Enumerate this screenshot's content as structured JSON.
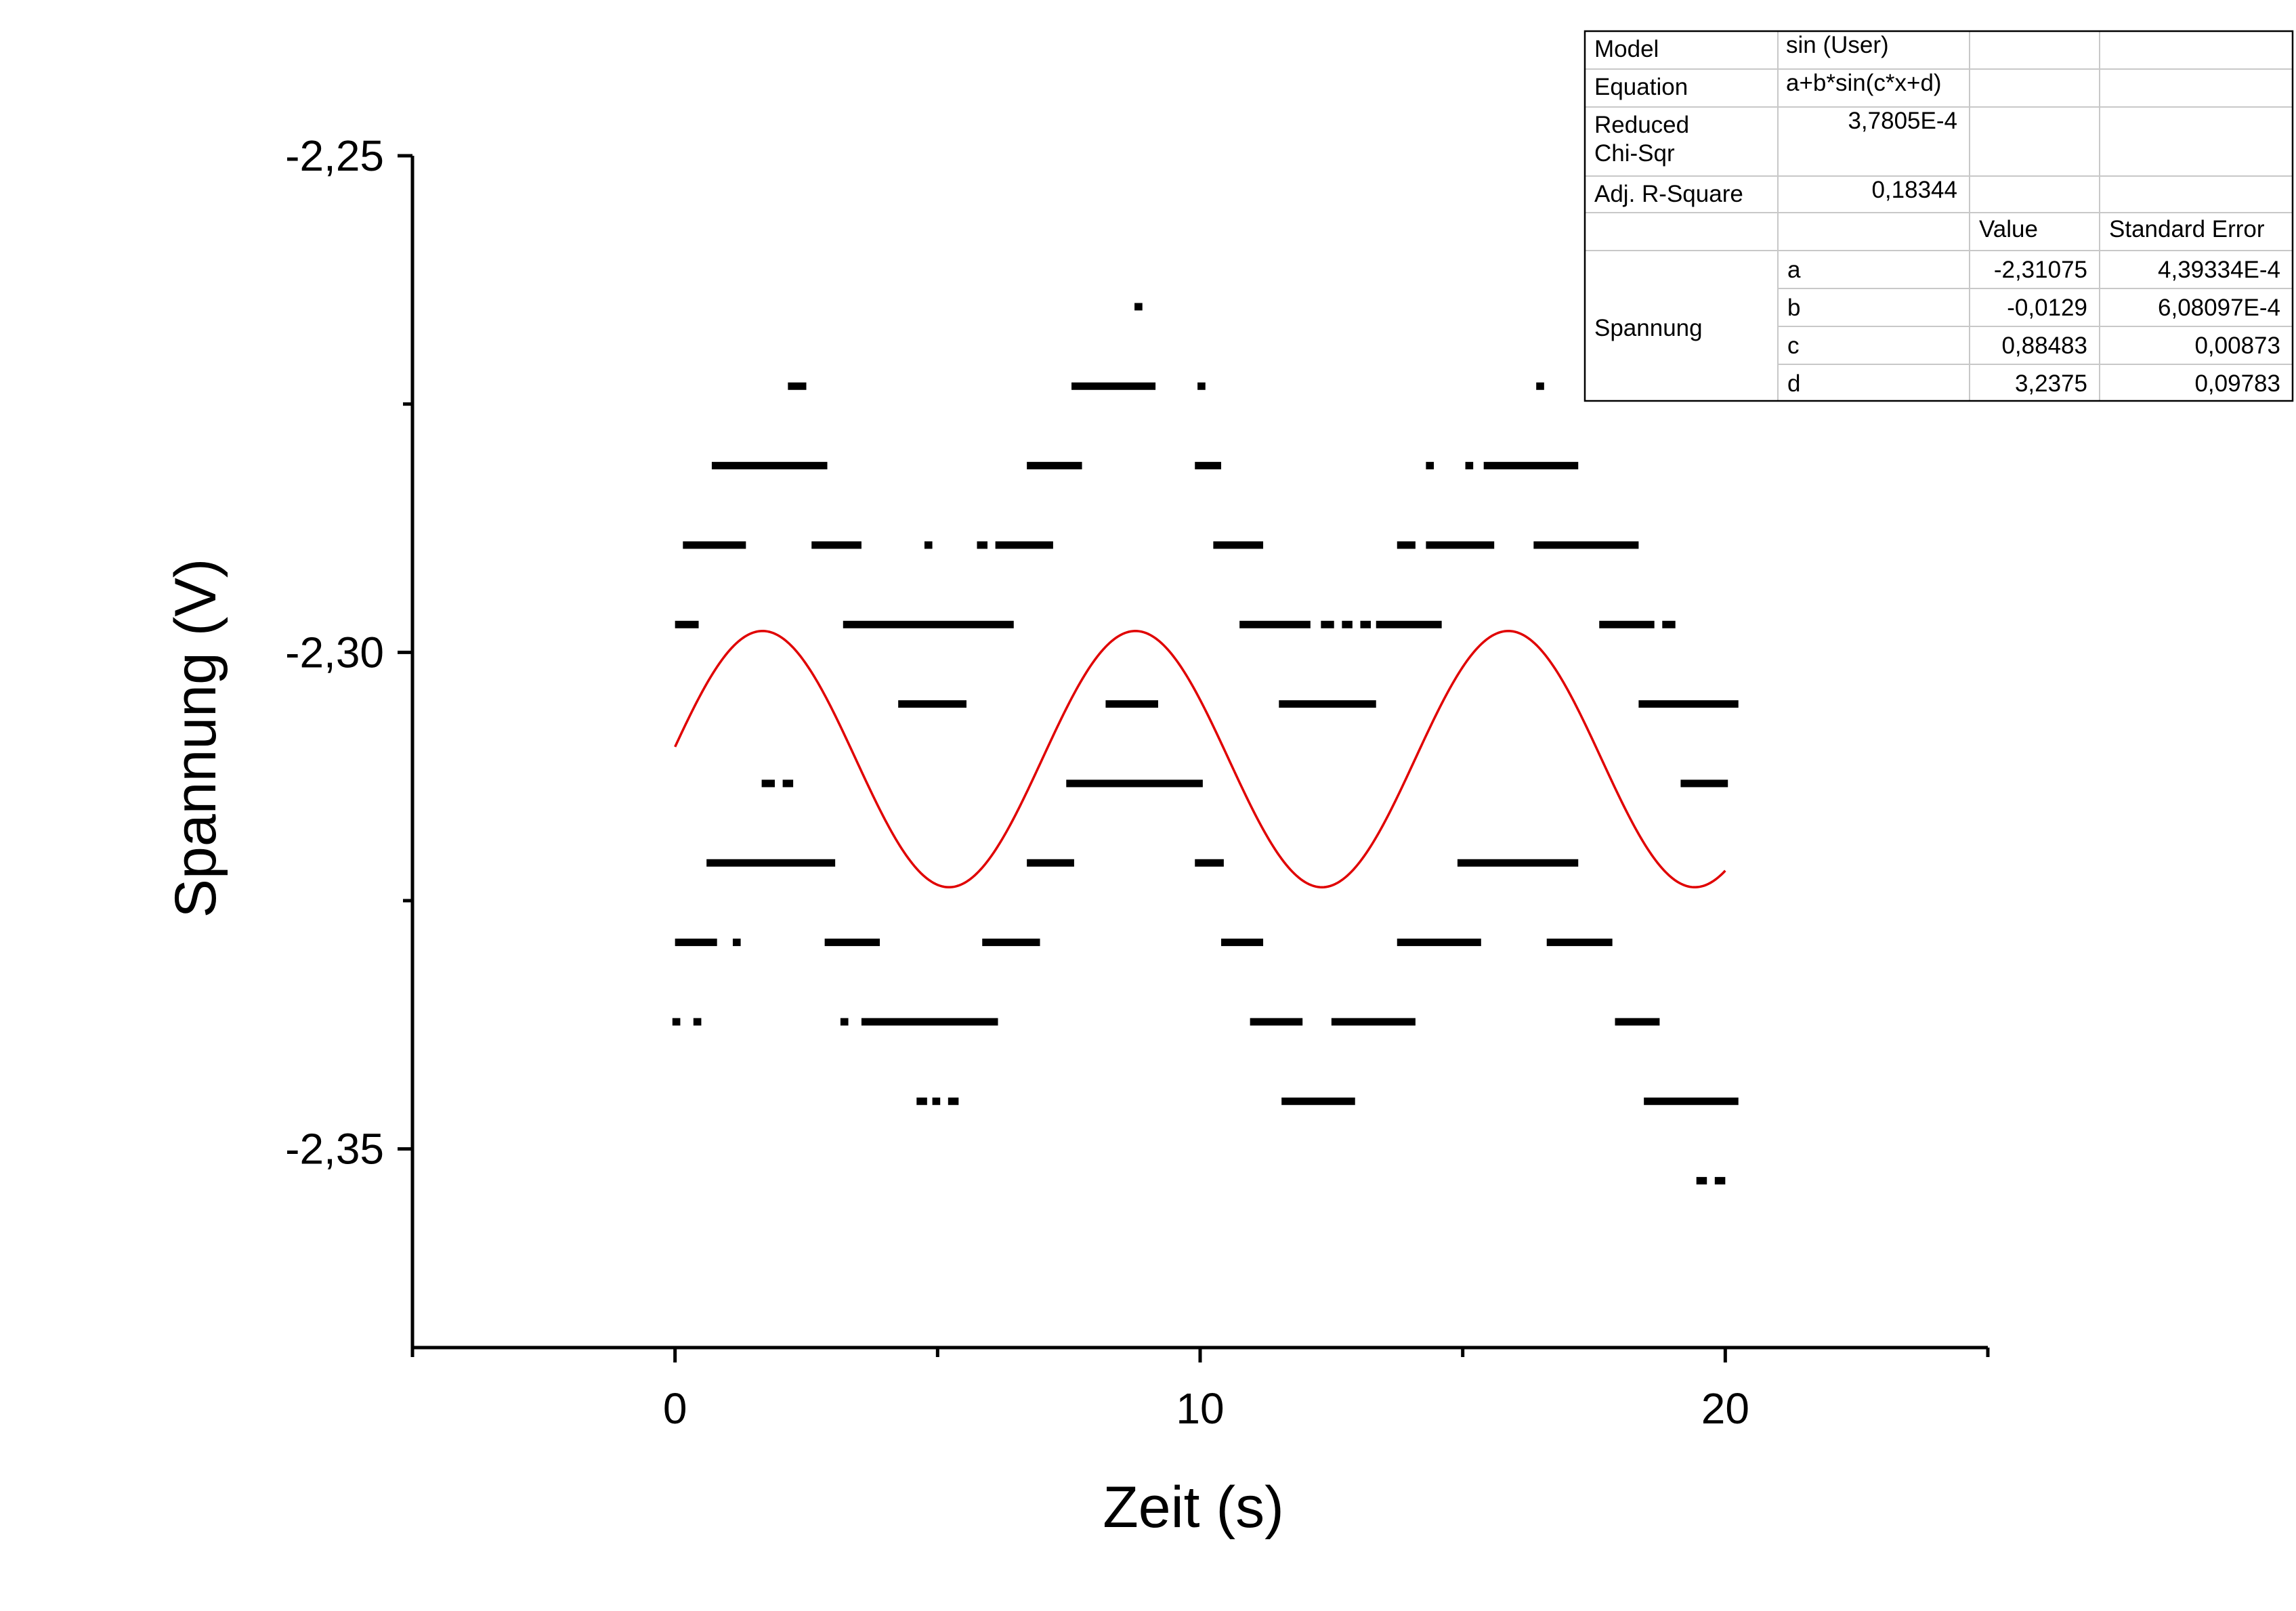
{
  "chart_data": {
    "type": "scatter",
    "xlabel": "Zeit (s)",
    "ylabel": "Spannung (V)",
    "xlim": [
      -5,
      25
    ],
    "ylim": [
      -2.37,
      -2.25
    ],
    "x_major_ticks": [
      0,
      10,
      20
    ],
    "x_minor_ticks": [
      -5,
      5,
      15,
      25
    ],
    "x_tick_labels": [
      "0",
      "10",
      "20"
    ],
    "y_major_ticks": [
      -2.25,
      -2.3,
      -2.35
    ],
    "y_minor_ticks": [
      -2.275,
      -2.325
    ],
    "y_tick_labels": [
      "-2,25",
      "-2,30",
      "-2,35"
    ],
    "grid": false,
    "legend": "none",
    "marker_color": "#000000",
    "fit_color": "#e00000",
    "series": [
      {
        "type": "scatter",
        "runs": [
          {
            "y": -2.2652,
            "segments": [
              [
                8.75,
                8.9
              ]
            ]
          },
          {
            "y": -2.2732,
            "segments": [
              [
                2.15,
                2.5
              ],
              [
                7.55,
                9.15
              ],
              [
                9.95,
                10.1
              ],
              [
                16.4,
                16.55
              ]
            ]
          },
          {
            "y": -2.2812,
            "segments": [
              [
                0.7,
                2.9
              ],
              [
                6.7,
                7.75
              ],
              [
                9.9,
                10.4
              ],
              [
                14.3,
                14.45
              ],
              [
                15.05,
                15.2
              ],
              [
                15.4,
                17.2
              ]
            ]
          },
          {
            "y": -2.2892,
            "segments": [
              [
                0.15,
                1.35
              ],
              [
                2.6,
                3.55
              ],
              [
                4.75,
                4.9
              ],
              [
                5.75,
                5.95
              ],
              [
                6.1,
                7.2
              ],
              [
                10.25,
                11.2
              ],
              [
                13.75,
                14.1
              ],
              [
                14.3,
                15.6
              ],
              [
                16.35,
                18.35
              ]
            ]
          },
          {
            "y": -2.2972,
            "segments": [
              [
                0.0,
                0.45
              ],
              [
                3.2,
                6.45
              ],
              [
                10.75,
                12.1
              ],
              [
                12.3,
                12.55
              ],
              [
                12.7,
                12.9
              ],
              [
                13.05,
                13.25
              ],
              [
                13.35,
                14.6
              ],
              [
                17.6,
                18.65
              ],
              [
                18.8,
                19.05
              ]
            ]
          },
          {
            "y": -2.3052,
            "segments": [
              [
                4.25,
                5.55
              ],
              [
                8.2,
                9.2
              ],
              [
                11.5,
                13.35
              ],
              [
                18.35,
                20.25
              ]
            ]
          },
          {
            "y": -2.3132,
            "segments": [
              [
                1.65,
                1.9
              ],
              [
                2.05,
                2.25
              ],
              [
                7.45,
                10.05
              ],
              [
                19.15,
                20.05
              ]
            ]
          },
          {
            "y": -2.3212,
            "segments": [
              [
                0.6,
                3.05
              ],
              [
                6.7,
                7.6
              ],
              [
                9.9,
                10.45
              ],
              [
                14.9,
                17.2
              ]
            ]
          },
          {
            "y": -2.3292,
            "segments": [
              [
                0.0,
                0.8
              ],
              [
                1.1,
                1.25
              ],
              [
                2.85,
                3.9
              ],
              [
                5.85,
                6.95
              ],
              [
                10.4,
                11.2
              ],
              [
                13.75,
                15.35
              ],
              [
                16.6,
                17.85
              ]
            ]
          },
          {
            "y": -2.3372,
            "segments": [
              [
                -0.05,
                0.1
              ],
              [
                0.35,
                0.5
              ],
              [
                3.15,
                3.3
              ],
              [
                3.55,
                6.15
              ],
              [
                10.95,
                11.95
              ],
              [
                12.5,
                14.1
              ],
              [
                17.9,
                18.75
              ]
            ]
          },
          {
            "y": -2.3452,
            "segments": [
              [
                4.6,
                4.8
              ],
              [
                4.9,
                5.05
              ],
              [
                5.2,
                5.4
              ],
              [
                11.55,
                12.95
              ],
              [
                18.45,
                20.25
              ]
            ]
          },
          {
            "y": -2.3532,
            "segments": [
              [
                19.45,
                19.65
              ],
              [
                19.8,
                20.0
              ]
            ]
          }
        ]
      },
      {
        "type": "line",
        "model": "a+b*sin(c*x+d)",
        "x_range": [
          0,
          20
        ],
        "params": {
          "a": -2.31075,
          "b": -0.0129,
          "c": 0.88483,
          "d": 3.2375
        }
      }
    ],
    "fit_table": {
      "rows": [
        [
          "Model",
          "sin (User)",
          "",
          ""
        ],
        [
          "Equation",
          "a+b*sin(c*x+d)",
          "",
          ""
        ],
        [
          "Reduced\nChi-Sqr",
          "3,7805E-4",
          "",
          ""
        ],
        [
          "Adj. R-Square",
          "0,18344",
          "",
          ""
        ],
        [
          "",
          "",
          "Value",
          "Standard Error"
        ]
      ],
      "group_label": "Spannung",
      "param_rows": [
        [
          "a",
          "-2,31075",
          "4,39334E-4"
        ],
        [
          "b",
          "-0,0129",
          "6,08097E-4"
        ],
        [
          "c",
          "0,88483",
          "0,00873"
        ],
        [
          "d",
          "3,2375",
          "0,09783"
        ]
      ]
    }
  }
}
